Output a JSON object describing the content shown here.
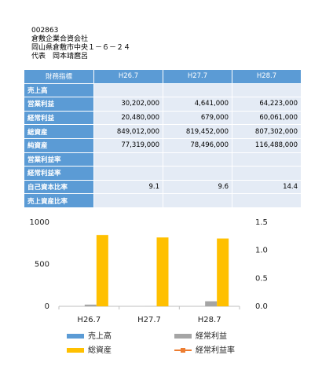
{
  "header": {
    "code": "002863",
    "company": "倉敷企業合資会社",
    "address": "岡山県倉敷市中央１－６－２４",
    "representative": "代表　岡本靖麿呂"
  },
  "table": {
    "columns": [
      "財務指標",
      "H26.7",
      "H27.7",
      "H28.7"
    ],
    "rows": [
      [
        "売上高",
        null,
        null,
        null
      ],
      [
        "営業利益",
        "30,202,000",
        "4,641,000",
        "64,223,000"
      ],
      [
        "経常利益",
        "20,480,000",
        "679,000",
        "60,061,000"
      ],
      [
        "総資産",
        "849,012,000",
        "819,452,000",
        "807,302,000"
      ],
      [
        "純資産",
        "77,319,000",
        "78,496,000",
        "116,488,000"
      ],
      [
        "営業利益率",
        null,
        null,
        null
      ],
      [
        "経常利益率",
        null,
        null,
        null
      ],
      [
        "自己資本比率",
        "9.1",
        "9.6",
        "14.4"
      ],
      [
        "売上資産比率",
        null,
        null,
        null
      ]
    ]
  },
  "chart_data": {
    "type": "bar",
    "categories": [
      "H26.7",
      "H27.7",
      "H28.7"
    ],
    "ylim": [
      0,
      1000
    ],
    "yticks": [
      0,
      500,
      1000
    ],
    "y2lim": [
      0,
      1.5
    ],
    "y2ticks": [
      {
        "value": 0,
        "label": "0.0"
      },
      0.5,
      {
        "value": 1,
        "label": "1.0"
      },
      1.5
    ],
    "series": [
      {
        "name": "売上高",
        "color": "#5b9bd5",
        "values": [
          null,
          null,
          null
        ]
      },
      {
        "name": "経常利益",
        "color": "#a5a5a5",
        "values": [
          20.48,
          0.679,
          60.061
        ]
      },
      {
        "name": "総資産",
        "color": "#ffc000",
        "values": [
          849.012,
          819.452,
          807.302
        ]
      },
      {
        "name": "経常利益率",
        "color": "#ed7d31",
        "type": "line",
        "axis": "y2",
        "values": [
          null,
          null,
          null
        ]
      }
    ]
  }
}
